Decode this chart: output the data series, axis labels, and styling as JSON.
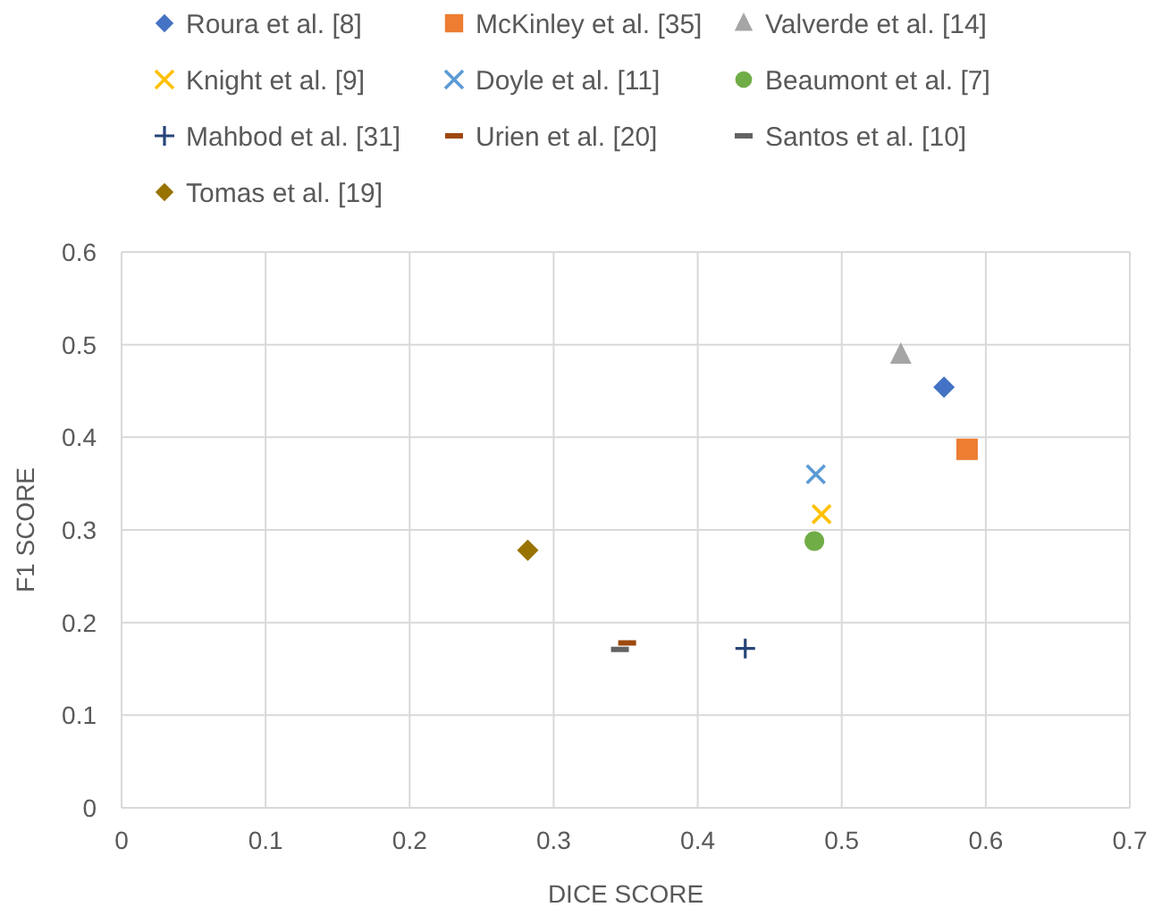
{
  "chart_data": {
    "type": "scatter",
    "xlabel": "DICE SCORE",
    "ylabel": "F1 SCORE",
    "xlim": [
      0,
      0.7
    ],
    "xticks": [
      0,
      0.1,
      0.2,
      0.3,
      0.4,
      0.5,
      0.6,
      0.7
    ],
    "ylim": [
      0,
      0.6
    ],
    "yticks": [
      0,
      0.1,
      0.2,
      0.3,
      0.4,
      0.5,
      0.6
    ],
    "grid": true,
    "legend": "top",
    "series": [
      {
        "name": "Roura et al. [8]",
        "color": "#4472c4",
        "marker": "diamond",
        "x": [
          0.571
        ],
        "values": [
          0.454
        ]
      },
      {
        "name": "McKinley et al. [35]",
        "color": "#ed7d31",
        "marker": "square",
        "x": [
          0.587
        ],
        "values": [
          0.387
        ]
      },
      {
        "name": "Valverde et al. [14]",
        "color": "#a5a5a5",
        "marker": "triangle",
        "x": [
          0.541
        ],
        "values": [
          0.489
        ]
      },
      {
        "name": "Knight et al. [9]",
        "color": "#ffc000",
        "marker": "cross",
        "x": [
          0.486
        ],
        "values": [
          0.317
        ]
      },
      {
        "name": "Doyle et al. [11]",
        "color": "#5b9bd5",
        "marker": "cross",
        "x": [
          0.482
        ],
        "values": [
          0.36
        ]
      },
      {
        "name": "Beaumont et al. [7]",
        "color": "#70ad47",
        "marker": "circle",
        "x": [
          0.481
        ],
        "values": [
          0.288
        ]
      },
      {
        "name": "Mahbod et al. [31]",
        "color": "#264478",
        "marker": "plus",
        "x": [
          0.433
        ],
        "values": [
          0.172
        ]
      },
      {
        "name": "Urien et al. [20]",
        "color": "#9e480e",
        "x": [
          0.351
        ],
        "values": [
          0.178
        ]
      },
      {
        "name": "Santos et al. [10]",
        "color": "#636363",
        "x": [
          0.346
        ],
        "values": [
          0.171
        ]
      },
      {
        "name": "Tomas et al. [19]",
        "color": "#997300",
        "marker": "diamond",
        "x": [
          0.282
        ],
        "values": [
          0.278
        ]
      }
    ]
  }
}
